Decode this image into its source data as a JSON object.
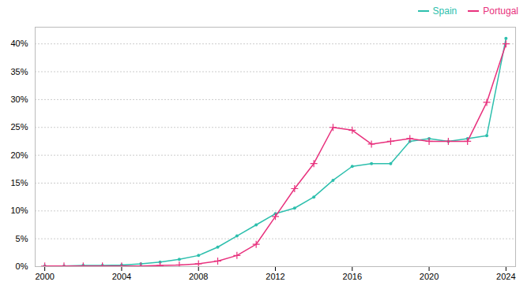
{
  "chart_data": {
    "type": "line",
    "x": [
      2000,
      2001,
      2002,
      2003,
      2004,
      2005,
      2006,
      2007,
      2008,
      2009,
      2010,
      2011,
      2012,
      2013,
      2014,
      2015,
      2016,
      2017,
      2018,
      2019,
      2020,
      2021,
      2022,
      2023,
      2024
    ],
    "series": [
      {
        "name": "Spain",
        "color": "#2dbfad",
        "marker": "circle",
        "values": [
          0.1,
          0.1,
          0.2,
          0.2,
          0.3,
          0.5,
          0.8,
          1.3,
          2.0,
          3.5,
          5.5,
          7.5,
          9.5,
          10.5,
          12.5,
          15.5,
          18.0,
          18.5,
          18.5,
          22.5,
          23.0,
          22.5,
          23.0,
          23.5,
          41.0
        ]
      },
      {
        "name": "Portugal",
        "color": "#e8317d",
        "marker": "plus",
        "values": [
          0.1,
          0.1,
          0.1,
          0.1,
          0.1,
          0.1,
          0.2,
          0.3,
          0.5,
          1.0,
          2.0,
          4.0,
          9.0,
          14.0,
          18.5,
          25.0,
          24.5,
          22.0,
          22.5,
          23.0,
          22.5,
          22.5,
          22.5,
          29.5,
          40.0
        ]
      }
    ],
    "xlim": [
      1999.5,
      2024.5
    ],
    "xticks": [
      2000,
      2004,
      2008,
      2012,
      2016,
      2020,
      2024
    ],
    "ylim": [
      0,
      43
    ],
    "yticks": [
      {
        "value": 0,
        "label": "0%"
      },
      {
        "value": 5,
        "label": "5%"
      },
      {
        "value": 10,
        "label": "10%"
      },
      {
        "value": 15,
        "label": "15%"
      },
      {
        "value": 20,
        "label": "20%"
      },
      {
        "value": 25,
        "label": "25%"
      },
      {
        "value": 30,
        "label": "30%"
      },
      {
        "value": 35,
        "label": "35%"
      },
      {
        "value": 40,
        "label": "40%"
      }
    ],
    "grid": true,
    "legend": "upper right"
  }
}
